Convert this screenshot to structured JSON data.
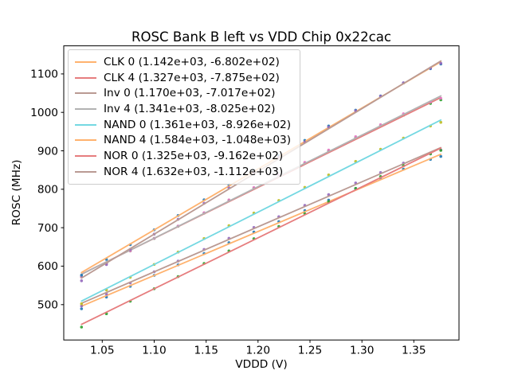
{
  "chart_data": {
    "type": "scatter",
    "title": "ROSC Bank B left vs VDD Chip 0x22cac",
    "xlabel": "VDDD (V)",
    "ylabel": "ROSC (MHz)",
    "xlim": [
      1.0129,
      1.3935
    ],
    "ylim": [
      408,
      1173
    ],
    "xticks": [
      1.05,
      1.1,
      1.15,
      1.2,
      1.25,
      1.3,
      1.35
    ],
    "xtick_labels": [
      "1.05",
      "1.10",
      "1.15",
      "1.20",
      "1.25",
      "1.30",
      "1.35"
    ],
    "yticks": [
      500,
      600,
      700,
      800,
      900,
      1000,
      1100
    ],
    "ytick_labels": [
      "500",
      "600",
      "700",
      "800",
      "900",
      "1000",
      "1100"
    ],
    "grid": false,
    "legend_position": "upper left",
    "fit_range": [
      1.03,
      1.376
    ],
    "x": [
      1.03,
      1.054,
      1.077,
      1.1,
      1.123,
      1.148,
      1.172,
      1.196,
      1.22,
      1.245,
      1.268,
      1.294,
      1.318,
      1.34,
      1.366,
      1.376
    ],
    "series": [
      {
        "name": "CLK 0",
        "label": "CLK 0 (1.142e+03, -6.802e+02)",
        "slope": 1142,
        "intercept": -680.2,
        "line_color": "#ffb26e",
        "dot_color": "#1f77b4",
        "y": [
          489.1,
          519.5,
          547.7,
          576.0,
          603.3,
          632.8,
          661.2,
          688.6,
          716.0,
          744.6,
          771.9,
          801.6,
          828.0,
          852.1,
          877.8,
          885.2
        ]
      },
      {
        "name": "CLK 4",
        "label": "CLK 4 (1.327e+03, -7.875e+02)",
        "slope": 1327,
        "intercept": -787.5,
        "line_color": "#e67d7e",
        "dot_color": "#2ca02c",
        "y": [
          572.3,
          607.2,
          639.7,
          672.2,
          703.7,
          737.9,
          770.7,
          802.6,
          834.4,
          867.6,
          899.1,
          933.6,
          964.5,
          992.7,
          1023.2,
          1032.5
        ]
      },
      {
        "name": "Inv 0",
        "label": "Inv 0 (1.170e+03, -7.017e+02)",
        "slope": 1170,
        "intercept": -701.7,
        "line_color": "#ba9a93",
        "dot_color": "#9467bd",
        "y": [
          496.4,
          527.5,
          556.4,
          585.3,
          613.2,
          643.5,
          672.5,
          700.6,
          728.7,
          758.0,
          785.9,
          816.3,
          843.4,
          868.1,
          894.5,
          902.2
        ]
      },
      {
        "name": "Inv 4",
        "label": "Inv 4 (1.341e+03, -8.025e+02)",
        "slope": 1341,
        "intercept": -802.5,
        "line_color": "#b2b2b2",
        "dot_color": "#e377c2",
        "y": [
          571.7,
          606.9,
          639.8,
          672.6,
          704.4,
          739.0,
          772.2,
          804.3,
          836.5,
          870.0,
          901.9,
          936.8,
          967.9,
          996.4,
          1027.3,
          1036.7
        ]
      },
      {
        "name": "NAND 0",
        "label": "NAND 0 (1.361e+03, -8.926e+02)",
        "slope": 1361,
        "intercept": -892.6,
        "line_color": "#74d8e2",
        "dot_color": "#bcbd22",
        "y": [
          502.2,
          537.9,
          571.2,
          604.5,
          636.8,
          671.8,
          705.5,
          738.2,
          770.8,
          804.9,
          837.2,
          872.5,
          904.2,
          933.1,
          964.5,
          974.1
        ]
      },
      {
        "name": "NAND 4",
        "label": "NAND 4 (1.584e+03, -1.048e+03)",
        "slope": 1584,
        "intercept": -1048,
        "line_color": "#ffb26e",
        "dot_color": "#1f77b4",
        "y": [
          576.5,
          617.5,
          656.0,
          694.4,
          731.8,
          772.4,
          811.5,
          849.5,
          887.5,
          927.1,
          964.5,
          1005.7,
          1042.7,
          1076.6,
          1113.7,
          1125.6
        ]
      },
      {
        "name": "NOR 0",
        "label": "NOR 0 (1.325e+03, -9.162e+02)",
        "slope": 1325,
        "intercept": -916.2,
        "line_color": "#e67d7e",
        "dot_color": "#2ca02c",
        "y": [
          441.6,
          476.4,
          508.8,
          541.3,
          572.8,
          606.9,
          639.7,
          671.5,
          703.3,
          736.4,
          767.9,
          802.4,
          833.2,
          861.3,
          891.8,
          901.0
        ]
      },
      {
        "name": "NOR 4",
        "label": "NOR 4 (1.632e+03, -1.112e+03)",
        "slope": 1632,
        "intercept": -1112,
        "line_color": "#ba9a93",
        "dot_color": "#9467bd",
        "y": [
          562.0,
          604.1,
          643.7,
          683.2,
          721.7,
          763.5,
          803.7,
          842.9,
          882.0,
          922.8,
          961.4,
          1003.8,
          1042.0,
          1076.9,
          1115.3,
          1127.6
        ]
      }
    ]
  },
  "colors": {
    "background": "#ffffff",
    "spine": "#000000",
    "text": "#000000",
    "legend_border": "#cccccc"
  }
}
